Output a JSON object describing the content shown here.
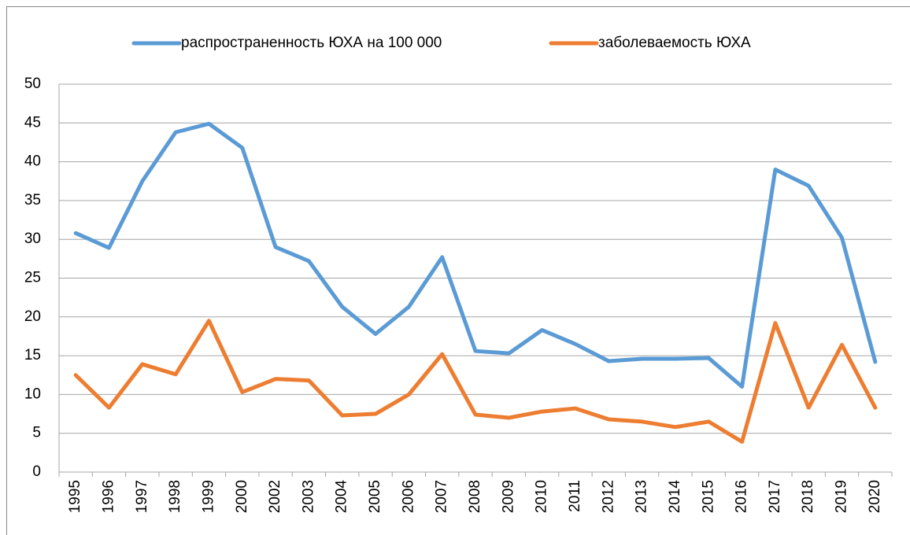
{
  "chart_data": {
    "type": "line",
    "categories": [
      "1995",
      "1996",
      "1997",
      "1998",
      "1999",
      "2000",
      "2002",
      "2003",
      "2004",
      "2005",
      "2006",
      "2007",
      "2008",
      "2009",
      "2010",
      "2011",
      "2012",
      "2013",
      "2014",
      "2015",
      "2016",
      "2017",
      "2018",
      "2019",
      "2020"
    ],
    "series": [
      {
        "name": "распространенность ЮХА на 100 000",
        "color": "#5b9bd5",
        "values": [
          30.8,
          28.9,
          37.5,
          43.8,
          44.9,
          41.8,
          29.0,
          27.2,
          21.3,
          17.8,
          21.3,
          27.7,
          15.6,
          15.3,
          18.3,
          16.5,
          14.3,
          14.6,
          14.6,
          14.7,
          11.0,
          39.0,
          36.9,
          30.2,
          14.2
        ]
      },
      {
        "name": "заболеваемость ЮХА",
        "color": "#ed7d31",
        "values": [
          12.5,
          8.3,
          13.9,
          12.6,
          19.5,
          10.3,
          12.0,
          11.8,
          7.3,
          7.5,
          10.0,
          15.2,
          7.4,
          7.0,
          7.8,
          8.2,
          6.8,
          6.5,
          5.8,
          6.5,
          3.9,
          19.2,
          8.3,
          16.4,
          8.3
        ]
      }
    ],
    "ylim": [
      0,
      50
    ],
    "yticks": [
      0,
      5,
      10,
      15,
      20,
      25,
      30,
      35,
      40,
      45,
      50
    ],
    "grid": true,
    "legend": "top"
  }
}
